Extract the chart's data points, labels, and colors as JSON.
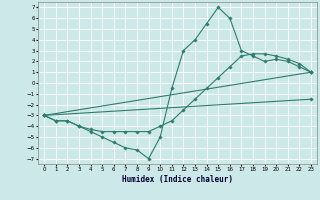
{
  "xlabel": "Humidex (Indice chaleur)",
  "ylabel": "",
  "xlim": [
    -0.5,
    23.5
  ],
  "ylim": [
    -7.5,
    7.5
  ],
  "xticks": [
    0,
    1,
    2,
    3,
    4,
    5,
    6,
    7,
    8,
    9,
    10,
    11,
    12,
    13,
    14,
    15,
    16,
    17,
    18,
    19,
    20,
    21,
    22,
    23
  ],
  "yticks": [
    -7,
    -6,
    -5,
    -4,
    -3,
    -2,
    -1,
    0,
    1,
    2,
    3,
    4,
    5,
    6,
    7
  ],
  "bg_color": "#cce8e8",
  "grid_color": "#ffffff",
  "line_color": "#2e7d6e",
  "series": [
    {
      "x": [
        0,
        1,
        2,
        3,
        4,
        5,
        6,
        7,
        8,
        9,
        10,
        11,
        12,
        13,
        14,
        15,
        16,
        17,
        18,
        19,
        20,
        21,
        22,
        23
      ],
      "y": [
        -3,
        -3.5,
        -3.5,
        -4,
        -4.5,
        -5,
        -5.5,
        -6,
        -6.2,
        -7,
        -5,
        -0.5,
        3,
        4,
        5.5,
        7,
        6,
        3,
        2.5,
        2,
        2.2,
        2,
        1.5,
        1
      ]
    },
    {
      "x": [
        0,
        1,
        2,
        3,
        4,
        5,
        6,
        7,
        8,
        9,
        10,
        11,
        12,
        13,
        14,
        15,
        16,
        17,
        18,
        19,
        20,
        21,
        22,
        23
      ],
      "y": [
        -3,
        -3.5,
        -3.5,
        -4,
        -4.3,
        -4.5,
        -4.5,
        -4.5,
        -4.5,
        -4.5,
        -4,
        -3.5,
        -2.5,
        -1.5,
        -0.5,
        0.5,
        1.5,
        2.5,
        2.7,
        2.7,
        2.5,
        2.2,
        1.8,
        1
      ]
    },
    {
      "x": [
        0,
        23
      ],
      "y": [
        -3,
        1
      ]
    },
    {
      "x": [
        0,
        23
      ],
      "y": [
        -3,
        -1.5
      ]
    }
  ]
}
